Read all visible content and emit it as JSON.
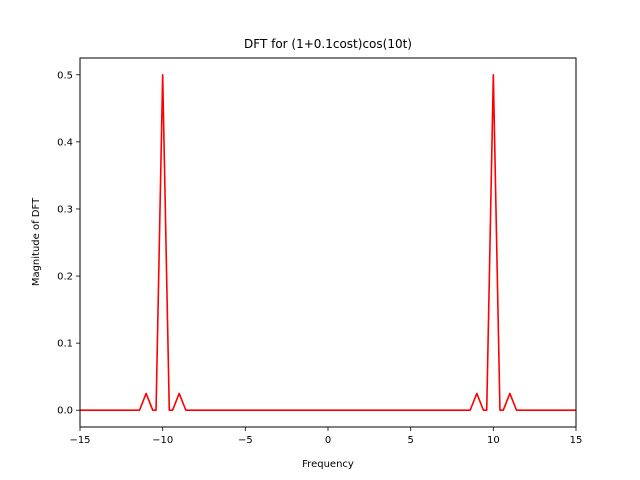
{
  "chart_data": {
    "type": "line",
    "title": "DFT for (1+0.1cost)cos(10t)",
    "xlabel": "Frequency",
    "ylabel": "Magnitude of DFT",
    "xlim": [
      -15,
      15
    ],
    "ylim": [
      -0.025,
      0.525
    ],
    "grid": false,
    "x_ticks": [
      -15,
      -10,
      -5,
      0,
      5,
      10,
      15
    ],
    "x_tick_labels": [
      "−15",
      "−10",
      "−5",
      "0",
      "5",
      "10",
      "15"
    ],
    "y_ticks": [
      0.0,
      0.1,
      0.2,
      0.3,
      0.4,
      0.5
    ],
    "y_tick_labels": [
      "0.0",
      "0.1",
      "0.2",
      "0.3",
      "0.4",
      "0.5"
    ],
    "series": [
      {
        "color": "#ff0000",
        "x": [
          -15,
          -11.4,
          -11,
          -10.6,
          -10.4,
          -10,
          -9.6,
          -9.4,
          -9,
          -8.6,
          8.6,
          9,
          9.4,
          9.6,
          10,
          10.4,
          10.6,
          11,
          11.4,
          15
        ],
        "y": [
          0,
          0,
          0.025,
          0,
          0,
          0.5,
          0,
          0,
          0.025,
          0,
          0,
          0.025,
          0,
          0,
          0.5,
          0,
          0,
          0.025,
          0,
          0
        ]
      }
    ]
  }
}
